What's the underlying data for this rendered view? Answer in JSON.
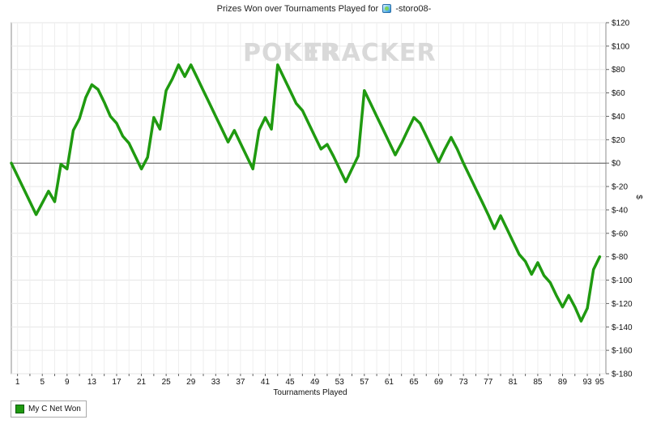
{
  "chart_data": {
    "type": "line",
    "title_prefix": "Prizes Won over Tournaments Played for",
    "title_player": "-storo08-",
    "xlabel": "Tournaments Played",
    "ylabel": "$",
    "watermark_left": "POKER",
    "watermark_right": "TRACKER",
    "xlim": [
      0,
      96
    ],
    "ylim": [
      -180,
      120
    ],
    "x_ticks": [
      1,
      5,
      9,
      13,
      17,
      21,
      25,
      29,
      33,
      37,
      41,
      45,
      49,
      53,
      57,
      61,
      65,
      69,
      73,
      77,
      81,
      85,
      89,
      93,
      95
    ],
    "y_ticks": [
      120,
      100,
      80,
      60,
      40,
      20,
      0,
      -20,
      -40,
      -60,
      -80,
      -100,
      -120,
      -140,
      -160,
      -180
    ],
    "y_tick_labels": [
      "$120",
      "$100",
      "$80",
      "$60",
      "$40",
      "$20",
      "$0",
      "$-20",
      "$-40",
      "$-60",
      "$-80",
      "$-100",
      "$-120",
      "$-140",
      "$-160",
      "$-180"
    ],
    "grid": true,
    "legend_position": "bottom-left",
    "series": [
      {
        "name": "My C Net Won",
        "color": "#1f9a10",
        "x": [
          0,
          4,
          6,
          7,
          8,
          9,
          10,
          11,
          12,
          13,
          14,
          15,
          16,
          17,
          18,
          19,
          20,
          21,
          22,
          23,
          24,
          25,
          26,
          27,
          28,
          29,
          30,
          31,
          32,
          33,
          34,
          35,
          36,
          37,
          38,
          39,
          40,
          41,
          42,
          43,
          44,
          45,
          46,
          47,
          48,
          49,
          50,
          51,
          52,
          53,
          54,
          55,
          56,
          57,
          58,
          59,
          60,
          61,
          62,
          63,
          64,
          65,
          66,
          67,
          68,
          69,
          70,
          71,
          72,
          73,
          74,
          75,
          76,
          77,
          78,
          79,
          80,
          81,
          82,
          83,
          84,
          85,
          86,
          87,
          88,
          89,
          90,
          91,
          92,
          93,
          94,
          95
        ],
        "values": [
          0,
          -44,
          -24,
          -33,
          -1,
          -5,
          28,
          38,
          56,
          67,
          63,
          52,
          40,
          34,
          23,
          17,
          6,
          -5,
          5,
          39,
          29,
          62,
          72,
          84,
          74,
          84,
          73,
          62,
          51,
          40,
          29,
          18,
          28,
          17,
          6,
          -5,
          28,
          39,
          29,
          84,
          73,
          62,
          51,
          45,
          34,
          23,
          12,
          16,
          6,
          -5,
          -16,
          -5,
          6,
          62,
          51,
          40,
          29,
          18,
          7,
          17,
          28,
          39,
          34,
          23,
          12,
          1,
          12,
          22,
          12,
          0,
          -11,
          -22,
          -33,
          -44,
          -56,
          -45,
          -56,
          -67,
          -78,
          -84,
          -95,
          -85,
          -96,
          -102,
          -113,
          -123,
          -113,
          -123,
          -135,
          -124,
          -91,
          -80
        ]
      }
    ]
  }
}
